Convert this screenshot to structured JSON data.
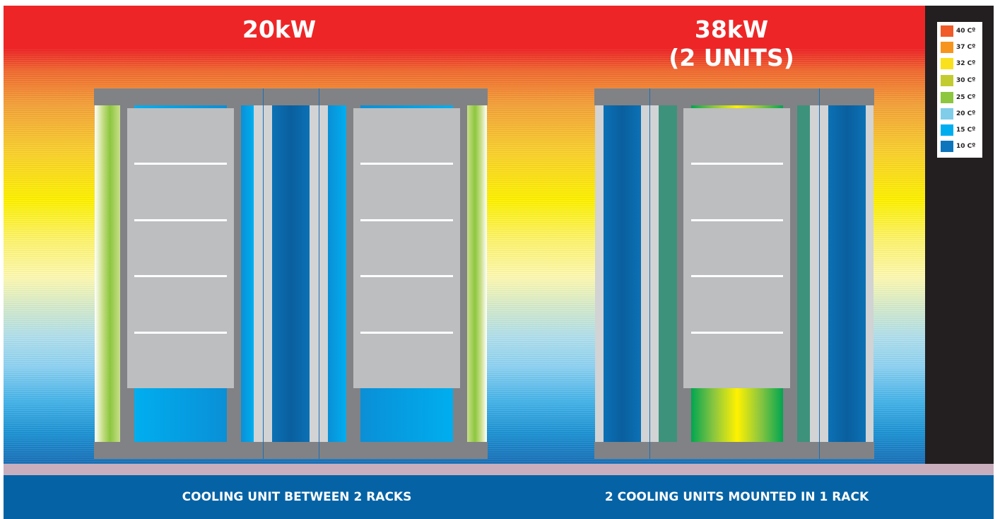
{
  "diagram": {
    "left_title": "20kW",
    "right_title_line1": "38kW",
    "right_title_line2": "(2 UNITS)",
    "left_caption": "COOLING UNIT BETWEEN 2 RACKS",
    "right_caption": "2 COOLING UNITS MOUNTED IN 1 RACK"
  },
  "legend": {
    "items": [
      {
        "label": "40 Cº",
        "color": "#f15a29"
      },
      {
        "label": "37 Cº",
        "color": "#f7941d"
      },
      {
        "label": "32 Cº",
        "color": "#f9e11e"
      },
      {
        "label": "30 Cº",
        "color": "#c2cc31"
      },
      {
        "label": "25 Cº",
        "color": "#8dc63f"
      },
      {
        "label": "20 Cº",
        "color": "#7fcde8"
      },
      {
        "label": "15 Cº",
        "color": "#00aeef"
      },
      {
        "label": "10 Cº",
        "color": "#0c75bc"
      }
    ]
  },
  "colors": {
    "hot": "#ee2526",
    "warm": "#fff200",
    "cool": "#1a70b8",
    "footer": "#0563a5"
  }
}
